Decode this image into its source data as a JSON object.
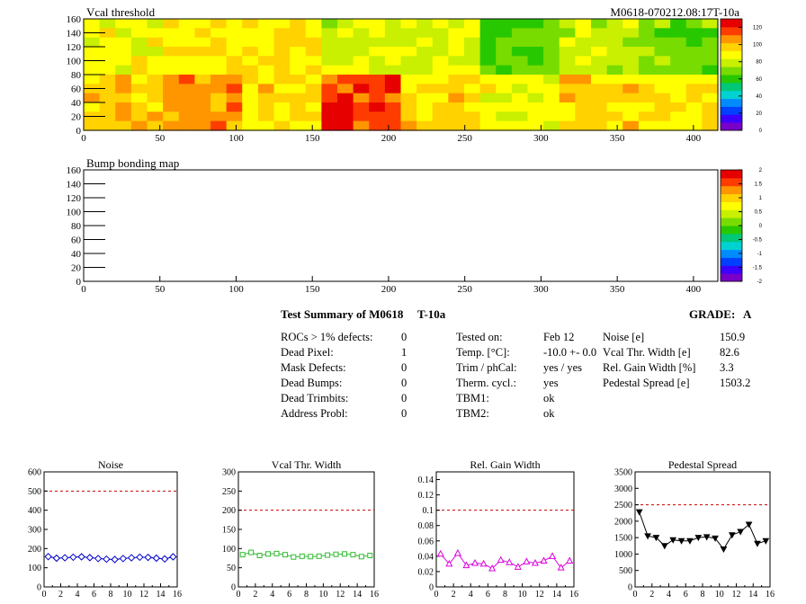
{
  "colors": {
    "palette": [
      "#7800c8",
      "#3c00ff",
      "#0040ff",
      "#008cff",
      "#00d2d2",
      "#00c878",
      "#28c800",
      "#78dc00",
      "#c8f000",
      "#ffff00",
      "#ffd200",
      "#ff9600",
      "#ff3c00",
      "#e60000"
    ]
  },
  "maps": [
    {
      "title": "Vcal threshold",
      "id_label": "M0618-070212.08:17T-10a",
      "xticks": [
        "0",
        "50",
        "100",
        "150",
        "200",
        "250",
        "300",
        "350",
        "400"
      ],
      "yticks": [
        "0",
        "20",
        "40",
        "60",
        "80",
        "100",
        "120",
        "140",
        "160"
      ],
      "zticks": [
        "0",
        "20",
        "40",
        "60",
        "80",
        "100",
        "120"
      ]
    },
    {
      "title": "Bump bonding map",
      "yticks": [
        "0",
        "20",
        "40",
        "60",
        "80",
        "100",
        "120",
        "140",
        "160"
      ],
      "xticks": [
        "0",
        "50",
        "100",
        "150",
        "200",
        "250",
        "300",
        "350",
        "400"
      ],
      "zticks": [
        "-2",
        "-1.5",
        "-1",
        "-0.5",
        "0",
        "0.5",
        "1",
        "1.5",
        "2"
      ]
    }
  ],
  "summary": {
    "title": "Test Summary of M0618",
    "temp_tag": "T-10a",
    "grade_label": "GRADE:",
    "grade": "A",
    "defects": [
      {
        "label": "ROCs > 1% defects:",
        "value": "0"
      },
      {
        "label": "Dead Pixel:",
        "value": "1"
      },
      {
        "label": "Mask Defects:",
        "value": "0"
      },
      {
        "label": "Dead Bumps:",
        "value": "0"
      },
      {
        "label": "Dead Trimbits:",
        "value": "0"
      },
      {
        "label": "Address Probl:",
        "value": "0"
      }
    ],
    "conditions": [
      {
        "label": "Tested on:",
        "value": "Feb 12"
      },
      {
        "label": "Temp. [°C]:",
        "value": "-10.0 +- 0.0"
      },
      {
        "label": "Trim / phCal:",
        "value": "yes / yes"
      },
      {
        "label": "Therm. cycl.:",
        "value": "yes"
      },
      {
        "label": "TBM1:",
        "value": "ok"
      },
      {
        "label": "TBM2:",
        "value": "ok"
      }
    ],
    "results": [
      {
        "label": "Noise [e]",
        "value": "150.9"
      },
      {
        "label": "Vcal Thr. Width [e]",
        "value": "82.6"
      },
      {
        "label": "Rel. Gain Width [%]",
        "value": "3.3"
      },
      {
        "label": "Pedestal Spread [e]",
        "value": "1503.2"
      }
    ]
  },
  "chart_data": [
    {
      "type": "heatmap",
      "title": "Vcal threshold",
      "xlim": [
        0,
        416
      ],
      "ylim": [
        0,
        160
      ],
      "zlim": [
        0,
        130
      ],
      "roc_grid": {
        "columns": 8,
        "rows": 2
      },
      "roc_mean_values": {
        "top_row": [
          88,
          92,
          93,
          82,
          85,
          65,
          80,
          70
        ],
        "bottom_row": [
          98,
          106,
          95,
          118,
          96,
          88,
          96,
          93
        ]
      }
    },
    {
      "type": "heatmap",
      "title": "Bump bonding map",
      "xlim": [
        0,
        416
      ],
      "ylim": [
        0,
        160
      ],
      "zlim": [
        -2,
        2
      ],
      "roc_grid": {
        "columns": 8,
        "rows": 2
      },
      "values": "empty"
    },
    {
      "type": "line",
      "title": "Noise",
      "color": "#0000cc",
      "marker": "diamond",
      "x": [
        0,
        1,
        2,
        3,
        4,
        5,
        6,
        7,
        8,
        9,
        10,
        11,
        12,
        13,
        14,
        15
      ],
      "values": [
        158,
        150,
        152,
        155,
        157,
        153,
        148,
        145,
        143,
        148,
        152,
        155,
        154,
        150,
        146,
        157
      ],
      "xlim": [
        0,
        16
      ],
      "ylim": [
        0,
        600
      ],
      "limit": 500,
      "xticks": [
        "0",
        "2",
        "4",
        "6",
        "8",
        "10",
        "12",
        "14",
        "16"
      ],
      "yticks": [
        "0",
        "100",
        "200",
        "300",
        "400",
        "500",
        "600"
      ]
    },
    {
      "type": "line",
      "title": "Vcal Thr. Width",
      "color": "#33bb33",
      "marker": "square",
      "x": [
        0,
        1,
        2,
        3,
        4,
        5,
        6,
        7,
        8,
        9,
        10,
        11,
        12,
        13,
        14,
        15
      ],
      "values": [
        84,
        90,
        82,
        86,
        87,
        84,
        78,
        80,
        79,
        80,
        83,
        85,
        86,
        84,
        79,
        82
      ],
      "xlim": [
        0,
        16
      ],
      "ylim": [
        0,
        300
      ],
      "limit": 200,
      "xticks": [
        "0",
        "2",
        "4",
        "6",
        "8",
        "10",
        "12",
        "14",
        "16"
      ],
      "yticks": [
        "0",
        "50",
        "100",
        "150",
        "200",
        "250",
        "300"
      ]
    },
    {
      "type": "line",
      "title": "Rel. Gain Width",
      "color": "#dd00dd",
      "marker": "triangle",
      "x": [
        0,
        1,
        2,
        3,
        4,
        5,
        6,
        7,
        8,
        9,
        10,
        11,
        12,
        13,
        14,
        15
      ],
      "values": [
        0.043,
        0.03,
        0.044,
        0.028,
        0.031,
        0.03,
        0.024,
        0.035,
        0.032,
        0.026,
        0.033,
        0.031,
        0.034,
        0.04,
        0.025,
        0.034
      ],
      "xlim": [
        0,
        16
      ],
      "ylim": [
        0,
        0.15
      ],
      "limit": 0.1,
      "xticks": [
        "0",
        "2",
        "4",
        "6",
        "8",
        "10",
        "12",
        "14",
        "16"
      ],
      "yticks": [
        "0",
        "0.02",
        "0.04",
        "0.06",
        "0.08",
        "0.1",
        "0.12",
        "0.14"
      ]
    },
    {
      "type": "line",
      "title": "Pedestal Spread",
      "color": "#000000",
      "marker": "triangle-down",
      "x": [
        0,
        1,
        2,
        3,
        4,
        5,
        6,
        7,
        8,
        9,
        10,
        11,
        12,
        13,
        14,
        15
      ],
      "values": [
        2280,
        1550,
        1500,
        1250,
        1430,
        1400,
        1400,
        1500,
        1520,
        1480,
        1150,
        1580,
        1680,
        1900,
        1320,
        1400
      ],
      "xlim": [
        0,
        16
      ],
      "ylim": [
        0,
        3500
      ],
      "limit": 2500,
      "xticks": [
        "0",
        "2",
        "4",
        "6",
        "8",
        "10",
        "12",
        "14",
        "16"
      ],
      "yticks": [
        "0",
        "500",
        "1000",
        "1500",
        "2000",
        "2500",
        "3000",
        "3500"
      ]
    }
  ]
}
